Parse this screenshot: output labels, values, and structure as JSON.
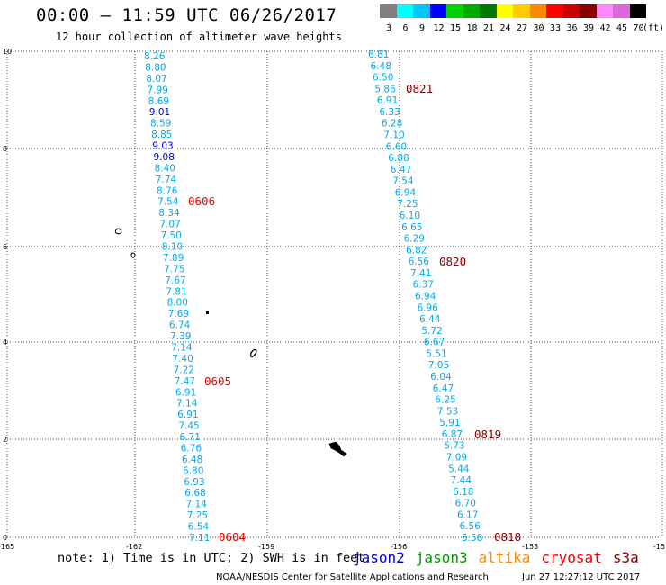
{
  "header": {
    "title": "00:00 – 11:59 UTC 06/26/2017",
    "subtitle": "12 hour collection of altimeter wave heights"
  },
  "colorbar": {
    "unit_label": "(ft)",
    "labels": [
      "3",
      "6",
      "9",
      "12",
      "15",
      "18",
      "21",
      "24",
      "27",
      "30",
      "33",
      "36",
      "39",
      "42",
      "45",
      "70"
    ],
    "colors": [
      "#808080",
      "#00ffff",
      "#00c8ff",
      "#0000ff",
      "#00d200",
      "#00aa00",
      "#007800",
      "#ffff00",
      "#ffcc00",
      "#ff8800",
      "#ff0000",
      "#cc0000",
      "#880000",
      "#ff88ff",
      "#dd66dd",
      "#000000"
    ]
  },
  "axes": {
    "x_ticks": [
      "-165",
      "-162",
      "-159",
      "-156",
      "-153",
      "-15"
    ],
    "y_ticks": [
      "0",
      "2",
      "4",
      "6",
      "8",
      "10"
    ]
  },
  "colors": {
    "cyan_value": "#00aaee",
    "blue_value": "#0000cc",
    "red_label": "#ee0000",
    "darkred_label": "#880000"
  },
  "tracks": [
    {
      "name": "west",
      "values": [
        "8.26",
        "8.80",
        "8.07",
        "7.99",
        "8.69",
        "9.01",
        "8.59",
        "8.85",
        "9.03",
        "9.08",
        "8.40",
        "7.74",
        "8.76",
        "7.54",
        "8.34",
        "7.07",
        "7.50",
        "8.10",
        "7.89",
        "7.75",
        "7.67",
        "7.81",
        "8.00",
        "7.69",
        "6.74",
        "7.39",
        "7.14",
        "7.40",
        "7.22",
        "7.47",
        "6.91",
        "7.14",
        "6.91",
        "7.45",
        "6.71",
        "6.76",
        "6.48",
        "6.80",
        "6.93",
        "6.68",
        "7.14",
        "7.25",
        "6.54",
        "7.11"
      ],
      "blue_values": [
        "9.01",
        "9.03",
        "9.08"
      ]
    },
    {
      "name": "east",
      "values": [
        "6.81",
        "6.48",
        "6.50",
        "5.86",
        "6.91",
        "6.33",
        "6.28",
        "7.10",
        "6.60",
        "6.88",
        "6.47",
        "7.54",
        "6.94",
        "7.25",
        "6.10",
        "6.65",
        "6.29",
        "6.82",
        "6.56",
        "7.41",
        "6.37",
        "6.94",
        "6.96",
        "6.44",
        "5.72",
        "6.67",
        "5.51",
        "7.05",
        "6.04",
        "6.47",
        "6.25",
        "7.53",
        "5.91",
        "6.87",
        "5.73",
        "7.09",
        "5.44",
        "7.44",
        "6.18",
        "6.70",
        "6.17",
        "6.56",
        "5.58"
      ],
      "blue_values": []
    }
  ],
  "time_labels": [
    {
      "text": "0606",
      "color": "red"
    },
    {
      "text": "0605",
      "color": "red"
    },
    {
      "text": "0604",
      "color": "red"
    },
    {
      "text": "0821",
      "color": "darkred"
    },
    {
      "text": "0820",
      "color": "darkred"
    },
    {
      "text": "0819",
      "color": "darkred"
    },
    {
      "text": "0818",
      "color": "darkred"
    }
  ],
  "footer": {
    "note": "note: 1) Time is in UTC; 2) SWH is in feet",
    "satellites": [
      {
        "name": "jason2",
        "color": "#0000cc"
      },
      {
        "name": "jason3",
        "color": "#009900"
      },
      {
        "name": "altika",
        "color": "#ff8800"
      },
      {
        "name": "cryosat",
        "color": "#ee0000"
      },
      {
        "name": "s3a",
        "color": "#880000"
      }
    ],
    "credit": "NOAA/NESDIS Center for Satellite Applications and Research",
    "timestamp": "Jun 27 12:27:12 UTC 2017"
  }
}
